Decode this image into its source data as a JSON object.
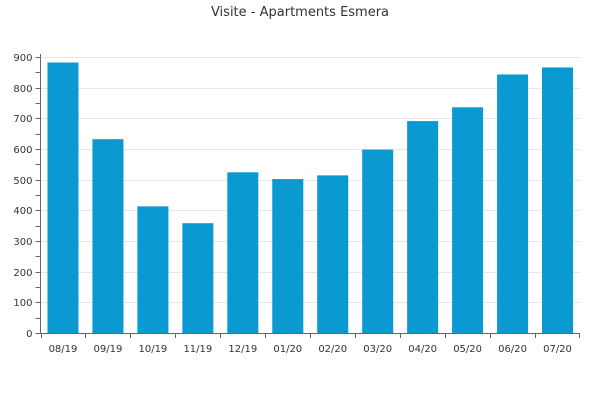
{
  "chart_data": {
    "type": "bar",
    "title": "Visite - Apartments Esmera",
    "xlabel": "",
    "ylabel": "",
    "categories": [
      "08/19",
      "09/19",
      "10/19",
      "11/19",
      "12/19",
      "01/20",
      "02/20",
      "03/20",
      "04/20",
      "05/20",
      "06/20",
      "07/20"
    ],
    "values": [
      882,
      632,
      413,
      358,
      524,
      502,
      514,
      598,
      691,
      736,
      843,
      866
    ],
    "ylim": [
      0,
      900
    ],
    "yticks": [
      0,
      100,
      200,
      300,
      400,
      500,
      600,
      700,
      800,
      900
    ],
    "grid": true,
    "colors": {
      "bar": "#0b99d2"
    }
  }
}
